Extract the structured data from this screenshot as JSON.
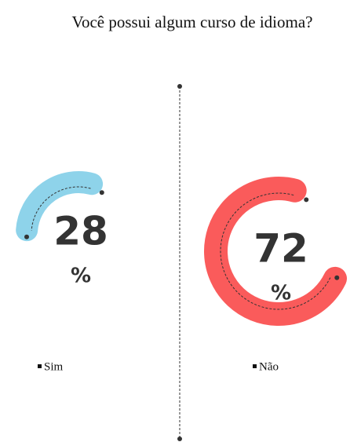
{
  "chart_data": {
    "type": "gauge",
    "title": "Você possui algum curso de idioma?",
    "categories": [
      "Sim",
      "Não"
    ],
    "values": [
      28,
      72
    ],
    "unit_label": "%",
    "colors": [
      "#8ed3ea",
      "#fa5b5b"
    ],
    "ylim": [
      0,
      100
    ]
  }
}
